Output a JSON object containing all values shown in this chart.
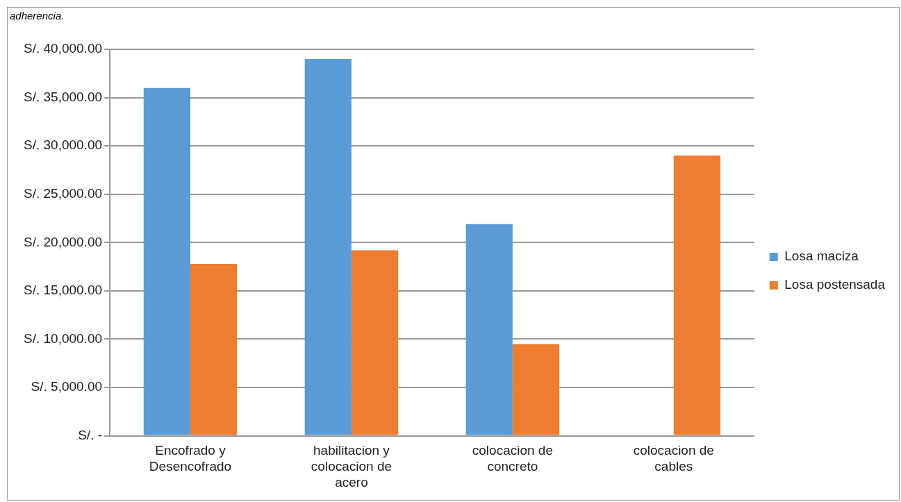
{
  "chart_data": {
    "type": "bar",
    "annotations": [
      "adherencia."
    ],
    "categories": [
      "Encofrado y Desencofrado",
      "habilitacion y colocacion de acero",
      "colocacion de concreto",
      "colocacion de cables"
    ],
    "series": [
      {
        "name": "Losa maciza",
        "color": "#5b9bd5",
        "values": [
          36000,
          39000,
          21900,
          0
        ]
      },
      {
        "name": "Losa postensada",
        "color": "#ed7d31",
        "values": [
          17800,
          19200,
          9500,
          29000
        ]
      }
    ],
    "ylim": [
      0,
      40000
    ],
    "yticks": [
      {
        "value": 0,
        "label": "S/. -"
      },
      {
        "value": 5000,
        "label": "S/. 5,000.00"
      },
      {
        "value": 10000,
        "label": "S/. 10,000.00"
      },
      {
        "value": 15000,
        "label": "S/. 15,000.00"
      },
      {
        "value": 20000,
        "label": "S/. 20,000.00"
      },
      {
        "value": 25000,
        "label": "S/. 25,000.00"
      },
      {
        "value": 30000,
        "label": "S/. 30,000.00"
      },
      {
        "value": 35000,
        "label": "S/. 35,000.00"
      },
      {
        "value": 40000,
        "label": "S/. 40,000.00"
      }
    ],
    "grid": "y",
    "legend": "right"
  }
}
